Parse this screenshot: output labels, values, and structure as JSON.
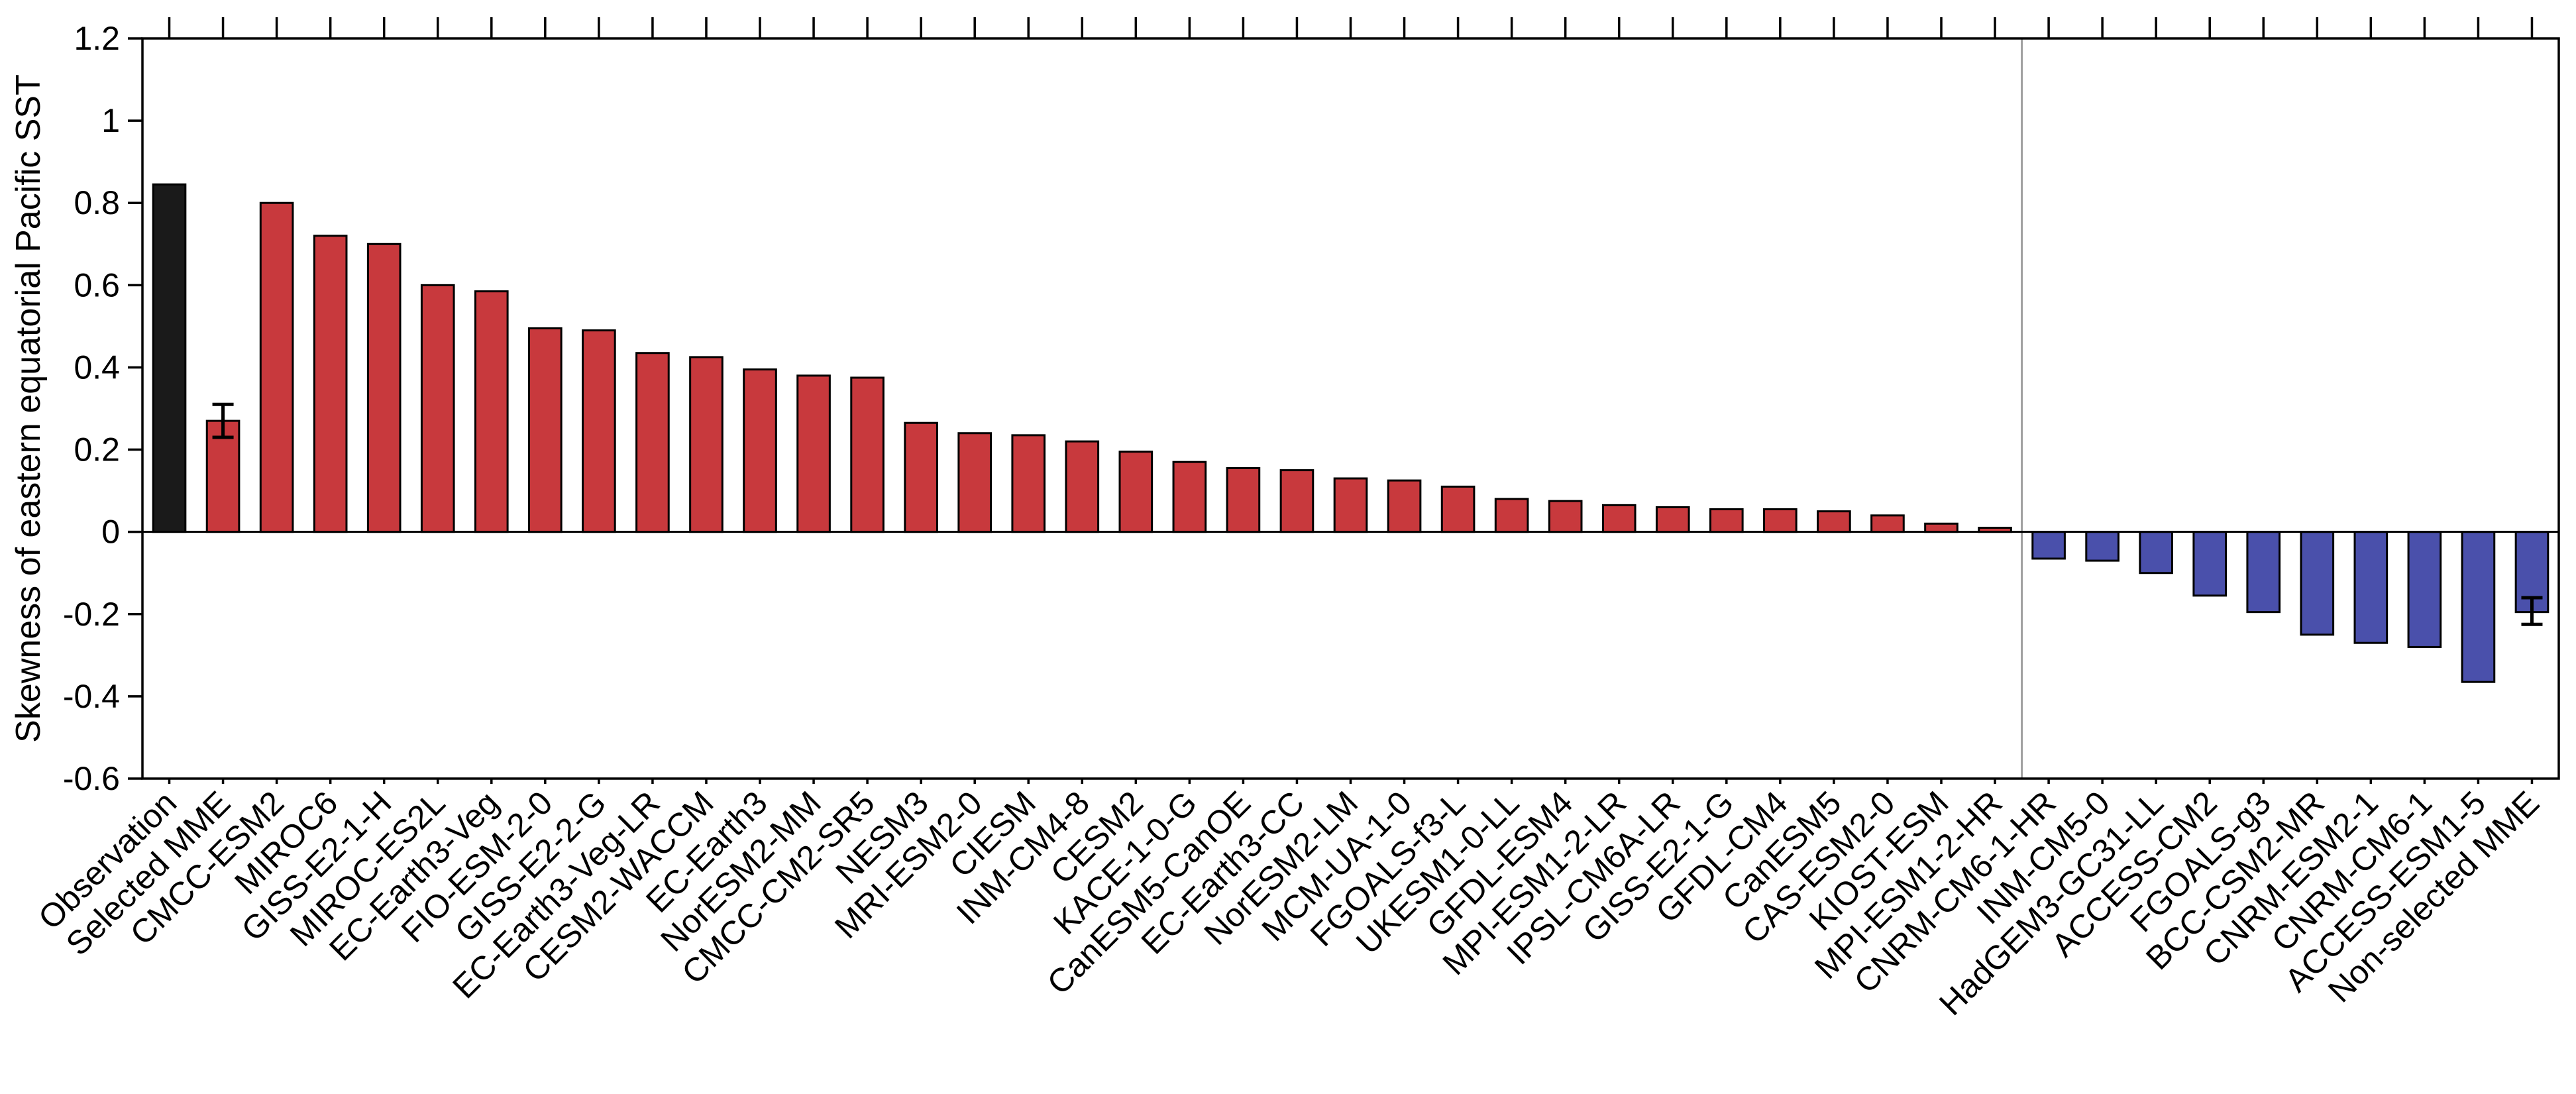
{
  "chart_data": {
    "type": "bar",
    "title": "",
    "xlabel": "",
    "ylabel": "Skewness of eastern equatorial Pacific SST",
    "ylim": [
      -0.6,
      1.2
    ],
    "yticks": [
      "-0.6",
      "-0.4",
      "-0.2",
      "0",
      "0.2",
      "0.4",
      "0.6",
      "0.8",
      "1",
      "1.2"
    ],
    "grid": false,
    "legend": "none",
    "categories": [
      "Observation",
      "Selected MME",
      "CMCC-ESM2",
      "MIROC6",
      "GISS-E2-1-H",
      "MIROC-ES2L",
      "EC-Earth3-Veg",
      "FIO-ESM-2-0",
      "GISS-E2-2-G",
      "EC-Earth3-Veg-LR",
      "CESM2-WACCM",
      "EC-Earth3",
      "NorESM2-MM",
      "CMCC-CM2-SR5",
      "NESM3",
      "MRI-ESM2-0",
      "CIESM",
      "INM-CM4-8",
      "CESM2",
      "KACE-1-0-G",
      "CanESM5-CanOE",
      "EC-Earth3-CC",
      "NorESM2-LM",
      "MCM-UA-1-0",
      "FGOALS-f3-L",
      "UKESM1-0-LL",
      "GFDL-ESM4",
      "MPI-ESM1-2-LR",
      "IPSL-CM6A-LR",
      "GISS-E2-1-G",
      "GFDL-CM4",
      "CanESM5",
      "CAS-ESM2-0",
      "KIOST-ESM",
      "MPI-ESM1-2-HR",
      "CNRM-CM6-1-HR",
      "INM-CM5-0",
      "HadGEM3-GC31-LL",
      "ACCESS-CM2",
      "FGOALS-g3",
      "BCC-CSM2-MR",
      "CNRM-ESM2-1",
      "CNRM-CM6-1",
      "ACCESS-ESM1-5",
      "Non-selected MME"
    ],
    "values": [
      0.845,
      0.27,
      0.8,
      0.72,
      0.7,
      0.6,
      0.585,
      0.495,
      0.49,
      0.435,
      0.425,
      0.395,
      0.38,
      0.375,
      0.265,
      0.24,
      0.235,
      0.22,
      0.195,
      0.17,
      0.155,
      0.15,
      0.13,
      0.125,
      0.11,
      0.08,
      0.075,
      0.065,
      0.06,
      0.055,
      0.055,
      0.05,
      0.04,
      0.02,
      0.01,
      -0.065,
      -0.07,
      -0.1,
      -0.155,
      -0.195,
      -0.25,
      -0.27,
      -0.28,
      -0.365,
      -0.195
    ],
    "error_bars": [
      {
        "category": "Selected MME",
        "low": 0.23,
        "high": 0.31
      },
      {
        "category": "Non-selected MME",
        "low": -0.225,
        "high": -0.16
      }
    ],
    "separator_after": "MPI-ESM1-2-HR",
    "colors": {
      "observation": "#1a1a1a",
      "positive": "#c8393d",
      "negative": "#4a50ab",
      "separator": "#a0a0a0"
    }
  }
}
